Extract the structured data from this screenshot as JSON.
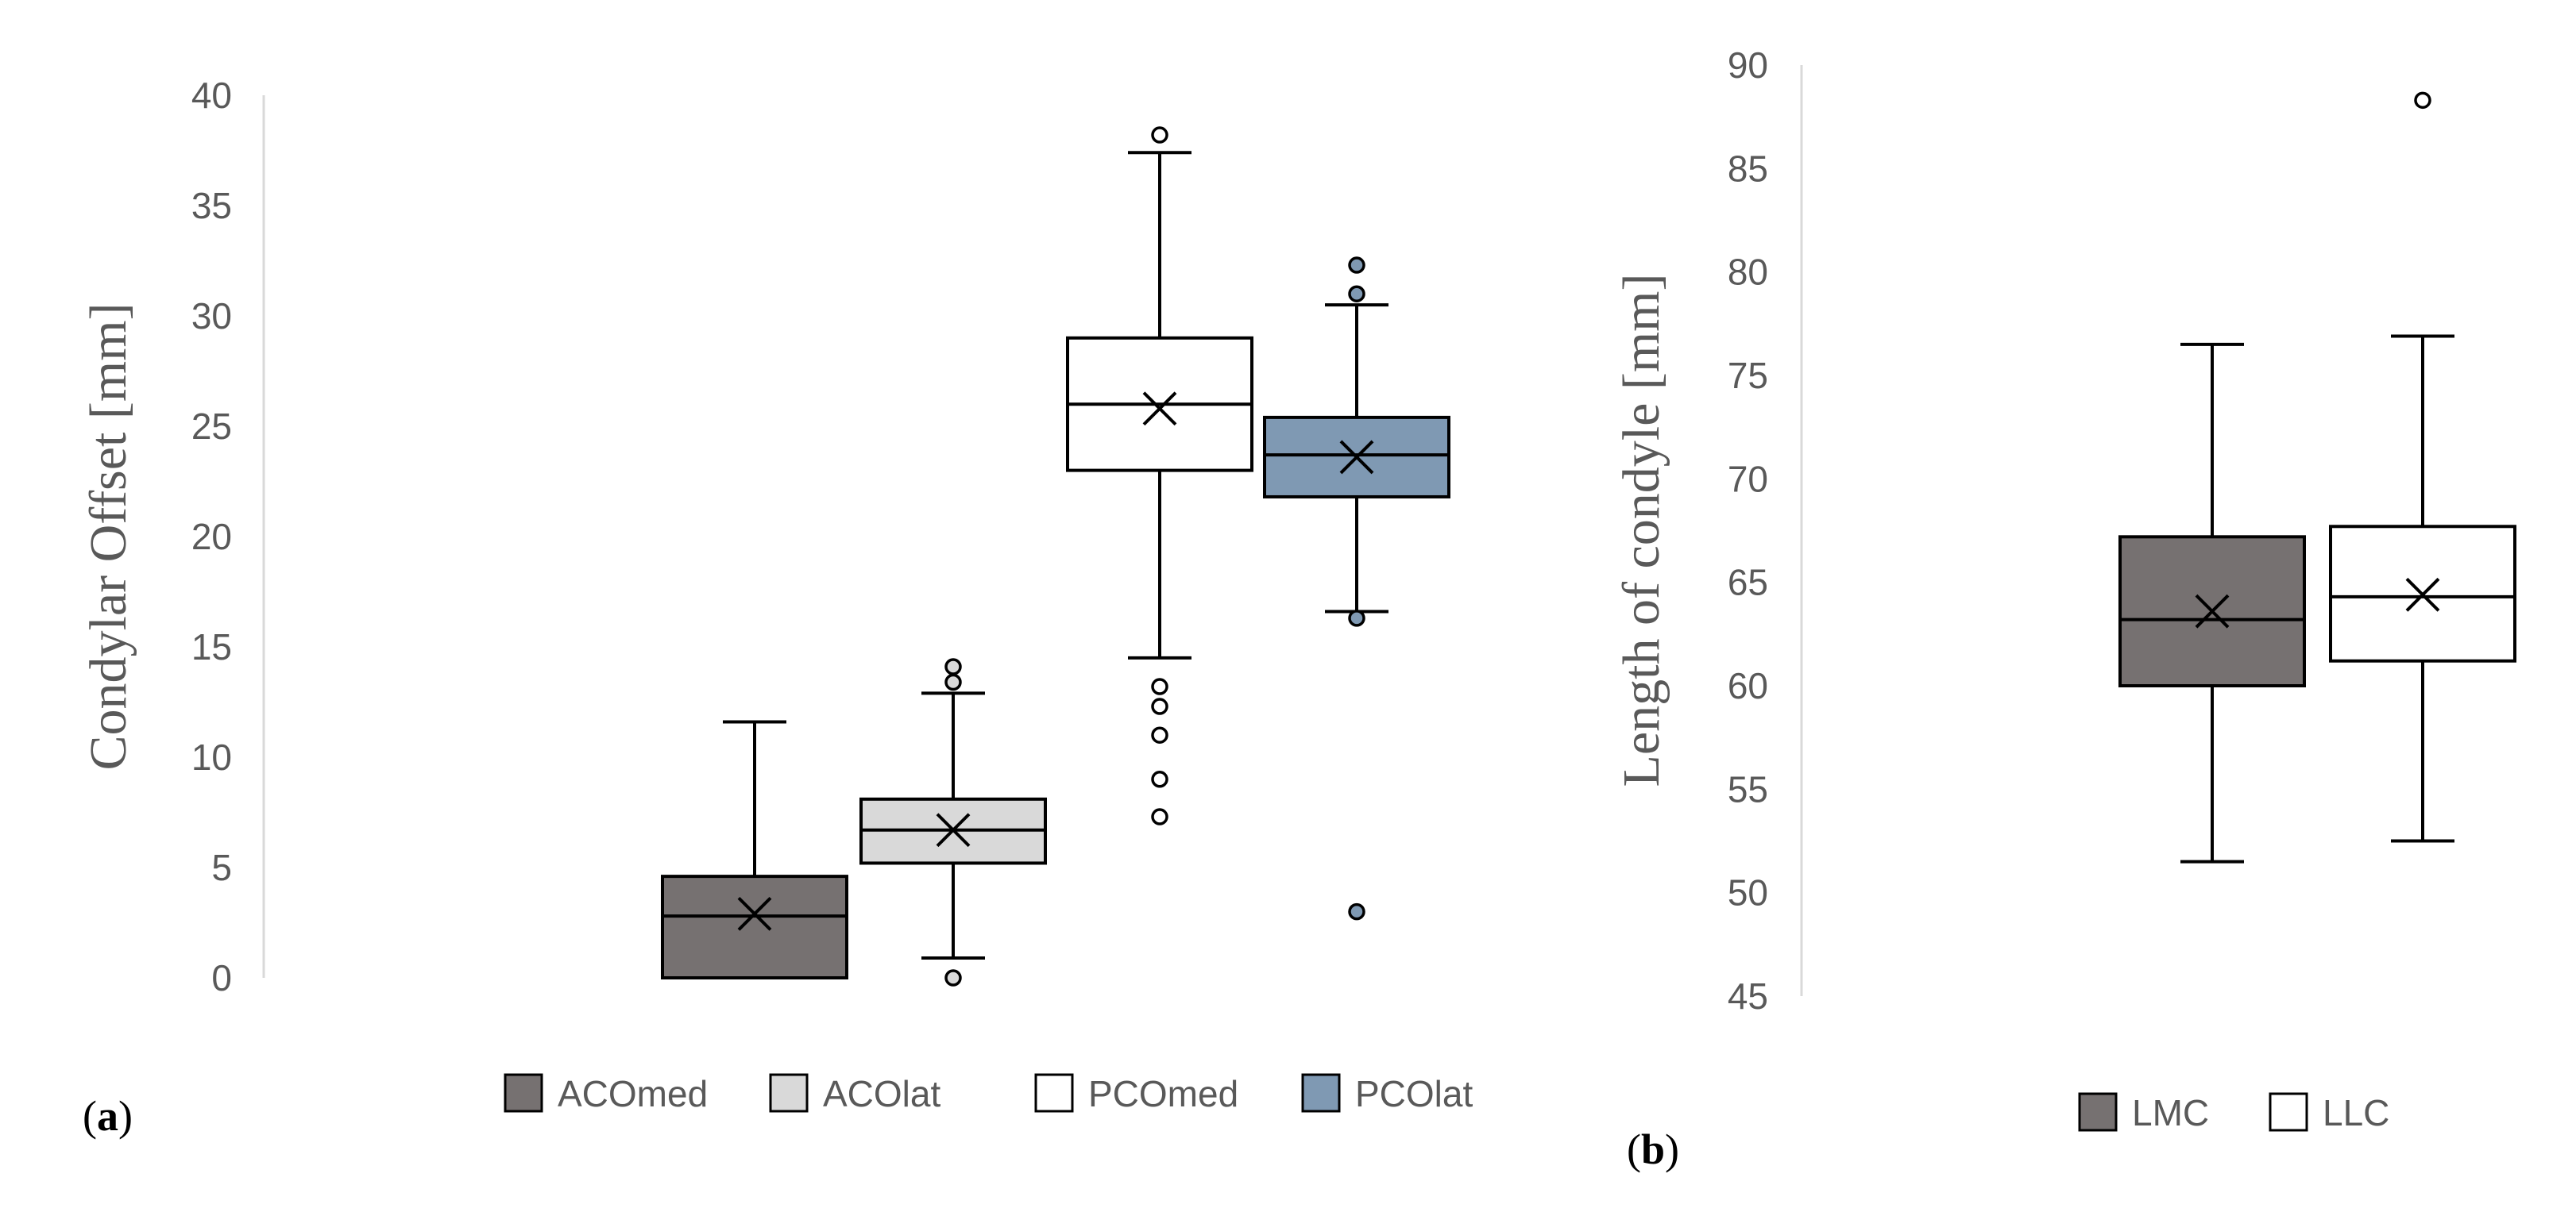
{
  "chart_data": [
    {
      "type": "box",
      "panel_label": "(a)",
      "panel_letter": "a",
      "ylabel": "Condylar Offset [mm]",
      "xlabel": "",
      "ylim": [
        0,
        40
      ],
      "yticks": [
        "0",
        "5",
        "10",
        "15",
        "20",
        "25",
        "30",
        "35",
        "40"
      ],
      "grid": false,
      "legend_position": "bottom",
      "series": [
        {
          "name": "ACOmed",
          "color": "#767171",
          "min": 0,
          "q1": 0,
          "median": 2.8,
          "q3": 4.6,
          "max": 11.6,
          "mean": 2.9,
          "outliers": []
        },
        {
          "name": "ACOlat",
          "color": "#d9d9d9",
          "min": 0.9,
          "q1": 5.2,
          "median": 6.7,
          "q3": 8.1,
          "max": 12.9,
          "mean": 6.7,
          "outliers": [
            0,
            13.4,
            14.1
          ]
        },
        {
          "name": "PCOmed",
          "color": "#ffffff",
          "min": 14.5,
          "q1": 23,
          "median": 26,
          "q3": 29,
          "max": 37.4,
          "mean": 25.8,
          "outliers": [
            7.3,
            9.0,
            11.0,
            12.3,
            13.2,
            38.2
          ]
        },
        {
          "name": "PCOlat",
          "color": "#7f99b3",
          "min": 16.6,
          "q1": 21.8,
          "median": 23.7,
          "q3": 25.4,
          "max": 30.5,
          "mean": 23.6,
          "outliers": [
            3.0,
            16.3,
            31.0,
            32.3
          ]
        }
      ]
    },
    {
      "type": "box",
      "panel_label": "(b)",
      "panel_letter": "b",
      "ylabel": "Length of condyle [mm]",
      "xlabel": "",
      "ylim": [
        45,
        90
      ],
      "yticks": [
        "45",
        "50",
        "55",
        "60",
        "65",
        "70",
        "75",
        "80",
        "85",
        "90"
      ],
      "grid": false,
      "legend_position": "bottom",
      "series": [
        {
          "name": "LMC",
          "color": "#767171",
          "min": 51.5,
          "q1": 60,
          "median": 63.2,
          "q3": 67.2,
          "max": 76.5,
          "mean": 63.6,
          "outliers": []
        },
        {
          "name": "LLC",
          "color": "#ffffff",
          "min": 52.5,
          "q1": 61.2,
          "median": 64.3,
          "q3": 67.7,
          "max": 76.9,
          "mean": 64.4,
          "outliers": [
            88.3
          ]
        }
      ]
    }
  ]
}
